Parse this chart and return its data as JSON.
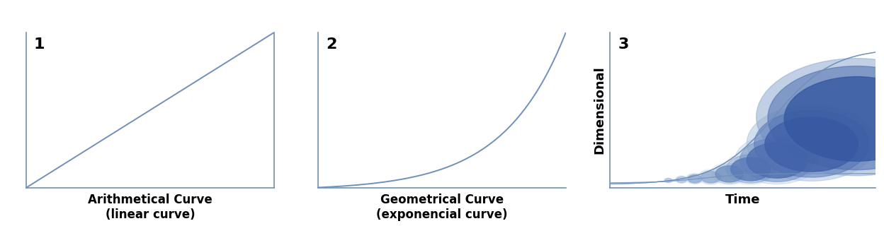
{
  "bg_color": "#ffffff",
  "curve_color": "#7090ba",
  "axis_color": "#7090b0",
  "label1_line1": "Arithmetical Curve",
  "label1_line2": "(linear curve)",
  "label2_line1": "Geometrical Curve",
  "label2_line2": "(exponencial curve)",
  "label3_x": "Time",
  "label3_y": "Dimensional",
  "panel_number_fontsize": 16,
  "xlabel_fontsize": 12,
  "spine_lw": 1.2,
  "circle_colors_dark": [
    "#3558a0",
    "#4060a8",
    "#4d6db0",
    "#5a7ab8",
    "#7090c0",
    "#90aad0",
    "#b0c4e0"
  ],
  "circle_colors_mid": [
    "#4d6db0",
    "#5a7ab8",
    "#7090c0",
    "#90aad0",
    "#b0c4e0",
    "#c8d8ec",
    "#dce8f5"
  ],
  "circle_colors_light": [
    "#90aad0",
    "#b0c4e0",
    "#c8d8ec",
    "#dce8f5",
    "#e8f0fa",
    "#f0f5fd",
    "#f8faff"
  ]
}
